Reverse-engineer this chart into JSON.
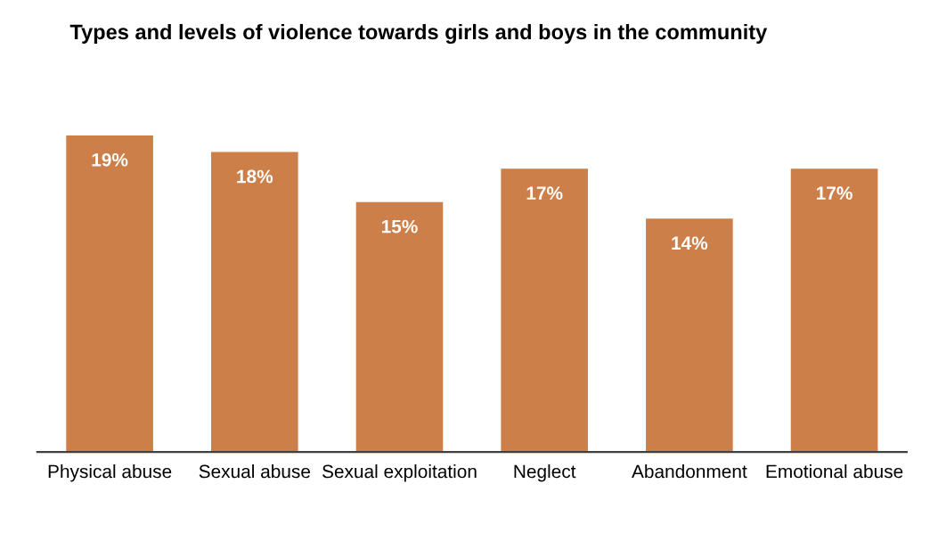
{
  "chart_data": {
    "type": "bar",
    "title": "Types and levels of violence towards girls and boys in the community",
    "categories": [
      "Physical abuse",
      "Sexual abuse",
      "Sexual exploitation",
      "Neglect",
      "Abandonment",
      "Emotional abuse"
    ],
    "values": [
      19,
      18,
      15,
      17,
      14,
      17
    ],
    "value_labels": [
      "19%",
      "18%",
      "15%",
      "17%",
      "14%",
      "17%"
    ],
    "color": "#cd7f4a"
  }
}
